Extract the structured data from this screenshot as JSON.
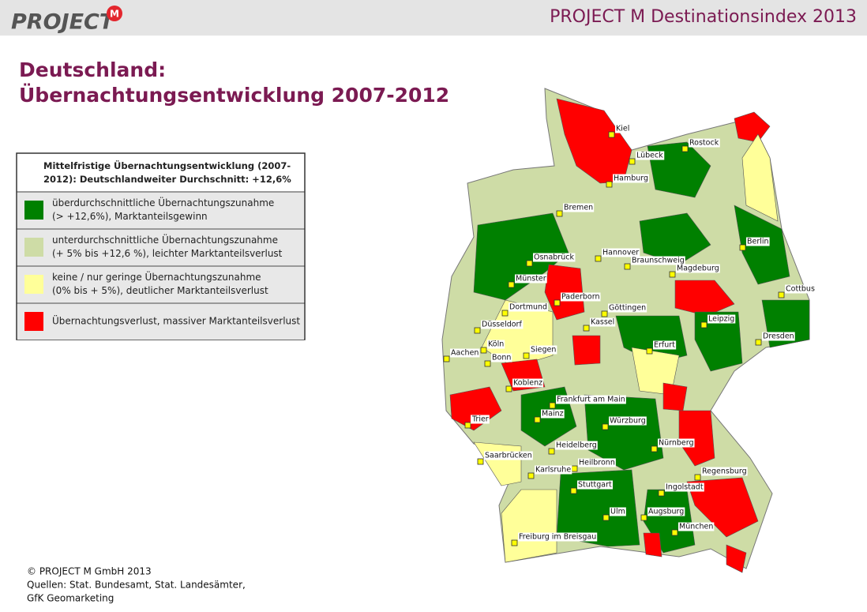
{
  "header": {
    "logo": "PROJECT",
    "logo_mark": "M",
    "title": "PROJECT M Destinationsindex 2013"
  },
  "heading": [
    "Deutschland:",
    "Übernachtungsentwicklung 2007-2012"
  ],
  "legend": {
    "title": "Mittelfristige Übernachtungsentwicklung (2007-2012): Deutschlandweiter Durchschnitt: +12,6%",
    "items": [
      {
        "color": "#008000",
        "lines": [
          "überdurchschnittliche Übernachtungszunahme",
          "(> +12,6%), Marktanteilsgewinn"
        ]
      },
      {
        "color": "#cedca6",
        "lines": [
          "unterdurchschnittliche Übernachtungszunahme",
          "(+ 5% bis +12,6 %), leichter Marktanteilsverlust"
        ]
      },
      {
        "color": "#ffff99",
        "lines": [
          "keine / nur geringe Übernachtungszunahme",
          "(0% bis + 5%), deutlicher Marktanteilsverlust"
        ]
      },
      {
        "color": "#ff0000",
        "lines": [
          "Übernachtungsverlust, massiver Marktanteilsverlust"
        ]
      }
    ]
  },
  "cities": [
    "Kiel",
    "Rostock",
    "Lübeck",
    "Hamburg",
    "Bremen",
    "Berlin",
    "Hannover",
    "Braunschweig",
    "Osnabrück",
    "Magdeburg",
    "Münster",
    "Cottbus",
    "Paderborn",
    "Dortmund",
    "Göttingen",
    "Kassel",
    "Leipzig",
    "Düsseldorf",
    "Dresden",
    "Köln",
    "Erfurt",
    "Siegen",
    "Aachen",
    "Bonn",
    "Koblenz",
    "Frankfurt am Main",
    "Mainz",
    "Trier",
    "Würzburg",
    "Heidelberg",
    "Nürnberg",
    "Saarbrücken",
    "Heilbronn",
    "Karlsruhe",
    "Regensburg",
    "Stuttgart",
    "Ingolstadt",
    "Ulm",
    "Augsburg",
    "München",
    "Freiburg im Breisgau"
  ],
  "footer": [
    "© PROJECT M GmbH 2013",
    "Quellen: Stat. Bundesamt, Stat. Landesämter,",
    "GfK Geomarketing"
  ]
}
